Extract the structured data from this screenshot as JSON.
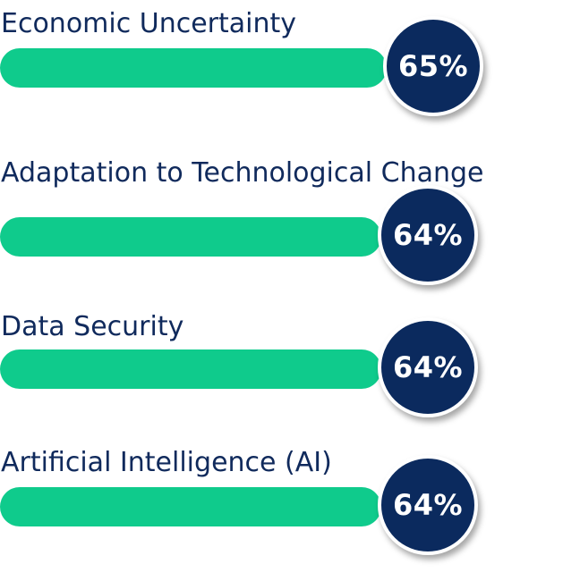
{
  "colors": {
    "label": "#102a5c",
    "bar": "#0fcb8c",
    "badge": "#0b2a5e",
    "badge_text": "#ffffff"
  },
  "chart_data": {
    "type": "bar",
    "orientation": "horizontal",
    "categories": [
      "Economic Uncertainty",
      "Adaptation to Technological Change",
      "Data Security",
      "Artificial Intelligence (AI)"
    ],
    "values": [
      65,
      64,
      64,
      64
    ],
    "value_labels": [
      "65%",
      "64%",
      "64%",
      "64%"
    ],
    "unit": "%",
    "xlim": [
      0,
      100
    ],
    "grid": false,
    "legend": "none"
  }
}
